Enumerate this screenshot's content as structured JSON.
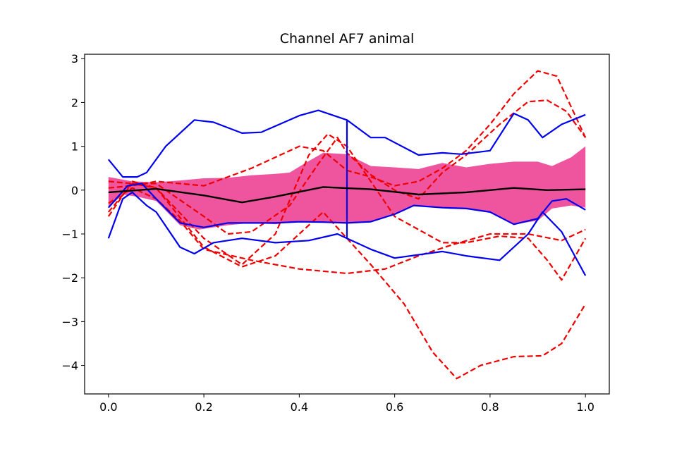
{
  "chart_data": {
    "type": "line",
    "title": "Channel AF7 animal",
    "xlim": [
      -0.05,
      1.05
    ],
    "ylim": [
      -4.65,
      3.1
    ],
    "xticks": [
      {
        "value": 0.0,
        "label": "0.0"
      },
      {
        "value": 0.2,
        "label": "0.2"
      },
      {
        "value": 0.4,
        "label": "0.4"
      },
      {
        "value": 0.6,
        "label": "0.6"
      },
      {
        "value": 0.8,
        "label": "0.8"
      },
      {
        "value": 1.0,
        "label": "1.0"
      }
    ],
    "yticks": [
      {
        "value": 3,
        "label": "3"
      },
      {
        "value": 2,
        "label": "2"
      },
      {
        "value": 1,
        "label": "1"
      },
      {
        "value": 0,
        "label": "0"
      },
      {
        "value": -1,
        "label": "−1"
      },
      {
        "value": -2,
        "label": "−2"
      },
      {
        "value": -3,
        "label": "−3"
      },
      {
        "value": -4,
        "label": "−4"
      }
    ],
    "band": {
      "color": "#ee559e",
      "upper": [
        [
          0,
          0.3
        ],
        [
          0.05,
          0.2
        ],
        [
          0.1,
          0.18
        ],
        [
          0.15,
          0.22
        ],
        [
          0.2,
          0.27
        ],
        [
          0.25,
          0.28
        ],
        [
          0.3,
          0.34
        ],
        [
          0.35,
          0.37
        ],
        [
          0.38,
          0.4
        ],
        [
          0.41,
          0.6
        ],
        [
          0.45,
          0.85
        ],
        [
          0.5,
          0.82
        ],
        [
          0.55,
          0.55
        ],
        [
          0.6,
          0.52
        ],
        [
          0.65,
          0.48
        ],
        [
          0.7,
          0.62
        ],
        [
          0.75,
          0.52
        ],
        [
          0.8,
          0.6
        ],
        [
          0.85,
          0.65
        ],
        [
          0.9,
          0.65
        ],
        [
          0.93,
          0.55
        ],
        [
          0.97,
          0.75
        ],
        [
          1.0,
          1.0
        ]
      ],
      "lower": [
        [
          0,
          -0.4
        ],
        [
          0.03,
          -0.1
        ],
        [
          0.06,
          -0.15
        ],
        [
          0.1,
          -0.25
        ],
        [
          0.15,
          -0.8
        ],
        [
          0.19,
          -0.9
        ],
        [
          0.25,
          -0.8
        ],
        [
          0.3,
          -0.75
        ],
        [
          0.35,
          -0.78
        ],
        [
          0.4,
          -0.7
        ],
        [
          0.45,
          -0.73
        ],
        [
          0.5,
          -0.75
        ],
        [
          0.55,
          -0.72
        ],
        [
          0.6,
          -0.55
        ],
        [
          0.64,
          -0.35
        ],
        [
          0.7,
          -0.4
        ],
        [
          0.75,
          -0.42
        ],
        [
          0.8,
          -0.5
        ],
        [
          0.85,
          -0.78
        ],
        [
          0.9,
          -0.7
        ],
        [
          0.93,
          -0.42
        ],
        [
          0.97,
          -0.35
        ],
        [
          1.0,
          -0.4
        ]
      ]
    },
    "mean": {
      "color": "#000000",
      "points": [
        [
          0,
          -0.05
        ],
        [
          0.1,
          0.03
        ],
        [
          0.2,
          -0.12
        ],
        [
          0.28,
          -0.28
        ],
        [
          0.35,
          -0.15
        ],
        [
          0.45,
          0.07
        ],
        [
          0.55,
          0.02
        ],
        [
          0.65,
          -0.1
        ],
        [
          0.75,
          -0.05
        ],
        [
          0.85,
          0.05
        ],
        [
          0.92,
          0.0
        ],
        [
          1.0,
          0.02
        ]
      ]
    },
    "blue_lines": {
      "color": "#0000ee",
      "lines": [
        [
          [
            0,
            0.7
          ],
          [
            0.03,
            0.3
          ],
          [
            0.06,
            0.3
          ],
          [
            0.08,
            0.4
          ],
          [
            0.12,
            1.0
          ],
          [
            0.18,
            1.6
          ],
          [
            0.22,
            1.55
          ],
          [
            0.28,
            1.3
          ],
          [
            0.32,
            1.32
          ],
          [
            0.4,
            1.7
          ],
          [
            0.44,
            1.82
          ],
          [
            0.5,
            1.6
          ],
          [
            0.55,
            1.2
          ],
          [
            0.58,
            1.2
          ],
          [
            0.65,
            0.8
          ],
          [
            0.7,
            0.85
          ],
          [
            0.74,
            0.82
          ],
          [
            0.8,
            0.9
          ],
          [
            0.85,
            1.75
          ],
          [
            0.88,
            1.6
          ],
          [
            0.91,
            1.2
          ],
          [
            0.95,
            1.5
          ],
          [
            1.0,
            1.72
          ]
        ],
        [
          [
            0.5,
            1.58
          ],
          [
            0.5,
            -1.1
          ]
        ],
        [
          [
            0,
            -1.1
          ],
          [
            0.03,
            -0.2
          ],
          [
            0.05,
            -0.05
          ],
          [
            0.08,
            -0.35
          ],
          [
            0.1,
            -0.5
          ],
          [
            0.15,
            -1.3
          ],
          [
            0.18,
            -1.45
          ],
          [
            0.22,
            -1.2
          ],
          [
            0.28,
            -1.1
          ],
          [
            0.35,
            -1.2
          ],
          [
            0.42,
            -1.15
          ],
          [
            0.48,
            -1.0
          ],
          [
            0.5,
            -1.1
          ],
          [
            0.55,
            -1.35
          ],
          [
            0.6,
            -1.55
          ],
          [
            0.7,
            -1.4
          ],
          [
            0.75,
            -1.5
          ],
          [
            0.82,
            -1.6
          ],
          [
            0.88,
            -1.0
          ],
          [
            0.91,
            -0.5
          ],
          [
            0.95,
            -0.95
          ],
          [
            1.0,
            -1.95
          ]
        ],
        [
          [
            0,
            -0.4
          ],
          [
            0.04,
            0.1
          ],
          [
            0.07,
            0.15
          ],
          [
            0.1,
            -0.2
          ],
          [
            0.15,
            -0.75
          ],
          [
            0.2,
            -0.85
          ],
          [
            0.25,
            -0.75
          ],
          [
            0.3,
            -0.75
          ],
          [
            0.35,
            -0.75
          ],
          [
            0.4,
            -0.72
          ],
          [
            0.45,
            -0.73
          ],
          [
            0.5,
            -0.75
          ],
          [
            0.55,
            -0.72
          ],
          [
            0.6,
            -0.55
          ],
          [
            0.64,
            -0.35
          ],
          [
            0.7,
            -0.4
          ],
          [
            0.75,
            -0.42
          ],
          [
            0.8,
            -0.5
          ],
          [
            0.85,
            -0.78
          ],
          [
            0.9,
            -0.65
          ],
          [
            0.93,
            -0.25
          ],
          [
            0.96,
            -0.2
          ],
          [
            1.0,
            -0.45
          ]
        ]
      ]
    },
    "red_dashed": {
      "color": "#ee0000",
      "lines": [
        [
          [
            0,
            -0.6
          ],
          [
            0.05,
            0.2
          ],
          [
            0.1,
            0.05
          ],
          [
            0.2,
            -1.3
          ],
          [
            0.28,
            -1.75
          ],
          [
            0.35,
            -1.5
          ],
          [
            0.45,
            -0.5
          ],
          [
            0.55,
            -1.7
          ],
          [
            0.62,
            -2.6
          ],
          [
            0.68,
            -3.7
          ],
          [
            0.73,
            -4.3
          ],
          [
            0.78,
            -4.0
          ],
          [
            0.85,
            -3.8
          ],
          [
            0.91,
            -3.78
          ],
          [
            0.95,
            -3.5
          ],
          [
            1.0,
            -2.6
          ]
        ],
        [
          [
            0,
            -0.5
          ],
          [
            0.05,
            0.15
          ],
          [
            0.1,
            0.05
          ],
          [
            0.2,
            -1.1
          ],
          [
            0.28,
            -1.7
          ],
          [
            0.35,
            -1.0
          ],
          [
            0.42,
            0.8
          ],
          [
            0.46,
            1.28
          ],
          [
            0.5,
            1.0
          ],
          [
            0.55,
            0.2
          ],
          [
            0.6,
            -0.6
          ],
          [
            0.7,
            -1.2
          ],
          [
            0.75,
            -1.2
          ],
          [
            0.82,
            -1.05
          ],
          [
            0.88,
            -1.1
          ],
          [
            0.92,
            -1.6
          ],
          [
            0.95,
            -2.05
          ],
          [
            1.0,
            -1.1
          ]
        ],
        [
          [
            0,
            0.2
          ],
          [
            0.05,
            0.15
          ],
          [
            0.1,
            0.15
          ],
          [
            0.2,
            -0.6
          ],
          [
            0.25,
            -1.0
          ],
          [
            0.3,
            -0.95
          ],
          [
            0.38,
            -0.35
          ],
          [
            0.44,
            0.6
          ],
          [
            0.48,
            1.2
          ],
          [
            0.5,
            0.85
          ],
          [
            0.55,
            0.35
          ],
          [
            0.6,
            0.0
          ],
          [
            0.65,
            -0.2
          ],
          [
            0.7,
            0.4
          ],
          [
            0.75,
            0.8
          ],
          [
            0.82,
            1.5
          ],
          [
            0.88,
            2.02
          ],
          [
            0.92,
            2.05
          ],
          [
            0.96,
            1.8
          ],
          [
            1.0,
            1.2
          ]
        ],
        [
          [
            0,
            -0.3
          ],
          [
            0.05,
            0.05
          ],
          [
            0.1,
            -0.2
          ],
          [
            0.15,
            -0.7
          ],
          [
            0.2,
            -1.35
          ],
          [
            0.3,
            -1.6
          ],
          [
            0.4,
            -1.8
          ],
          [
            0.5,
            -1.9
          ],
          [
            0.58,
            -1.8
          ],
          [
            0.65,
            -1.5
          ],
          [
            0.72,
            -1.25
          ],
          [
            0.8,
            -1.0
          ],
          [
            0.88,
            -1.0
          ],
          [
            0.95,
            -1.15
          ],
          [
            1.0,
            -0.9
          ]
        ],
        [
          [
            0,
            0.05
          ],
          [
            0.05,
            0.1
          ],
          [
            0.1,
            0.2
          ],
          [
            0.2,
            0.1
          ],
          [
            0.3,
            0.5
          ],
          [
            0.4,
            1.0
          ],
          [
            0.45,
            0.9
          ],
          [
            0.5,
            0.45
          ],
          [
            0.55,
            0.3
          ],
          [
            0.6,
            0.1
          ],
          [
            0.65,
            0.2
          ],
          [
            0.7,
            0.5
          ],
          [
            0.75,
            0.9
          ],
          [
            0.8,
            1.5
          ],
          [
            0.85,
            2.2
          ],
          [
            0.9,
            2.72
          ],
          [
            0.94,
            2.6
          ],
          [
            1.0,
            1.2
          ]
        ]
      ]
    }
  }
}
